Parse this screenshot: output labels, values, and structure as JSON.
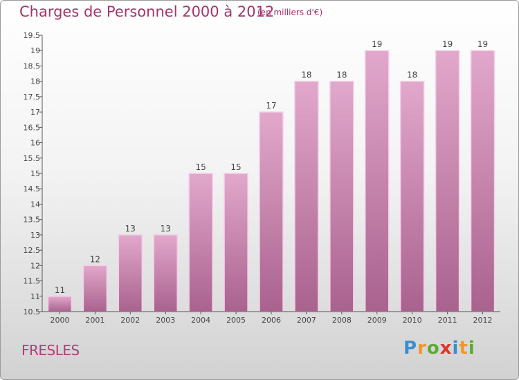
{
  "title": "Charges de Personnel 2000 à 2012",
  "subtitle": "(en milliers d'€)",
  "commune": "FRESLES",
  "logo": {
    "letters": [
      "P",
      "r",
      "o",
      "x",
      "i",
      "t",
      "i"
    ],
    "colors": [
      "#3a8fd0",
      "#f0962a",
      "#5cab33",
      "#e0342c",
      "#3a8fd0",
      "#f0962a",
      "#5cab33"
    ]
  },
  "colors": {
    "bar_top": "#e2a8cc",
    "bar_bottom": "#a9628e",
    "bar_edge": "#f4d0e6",
    "text": "#a4346c",
    "axis": "#555555"
  },
  "chart_data": {
    "type": "bar",
    "title": "Charges de Personnel 2000 à 2012",
    "subtitle": "(en milliers d'€)",
    "categories": [
      "2000",
      "2001",
      "2002",
      "2003",
      "2004",
      "2005",
      "2006",
      "2007",
      "2008",
      "2009",
      "2010",
      "2011",
      "2012"
    ],
    "values": [
      11,
      12,
      13,
      13,
      15,
      15,
      17,
      18,
      18,
      19,
      18,
      19,
      19
    ],
    "ylim": [
      10.5,
      19.5
    ],
    "yticks": [
      "10.5",
      "11",
      "11.5",
      "12",
      "12.5",
      "13",
      "13.5",
      "14",
      "14.5",
      "15",
      "15.5",
      "16",
      "16.5",
      "17",
      "17.5",
      "18",
      "18.5",
      "19",
      "19.5"
    ],
    "grid": false,
    "xlabel": "",
    "ylabel": ""
  }
}
